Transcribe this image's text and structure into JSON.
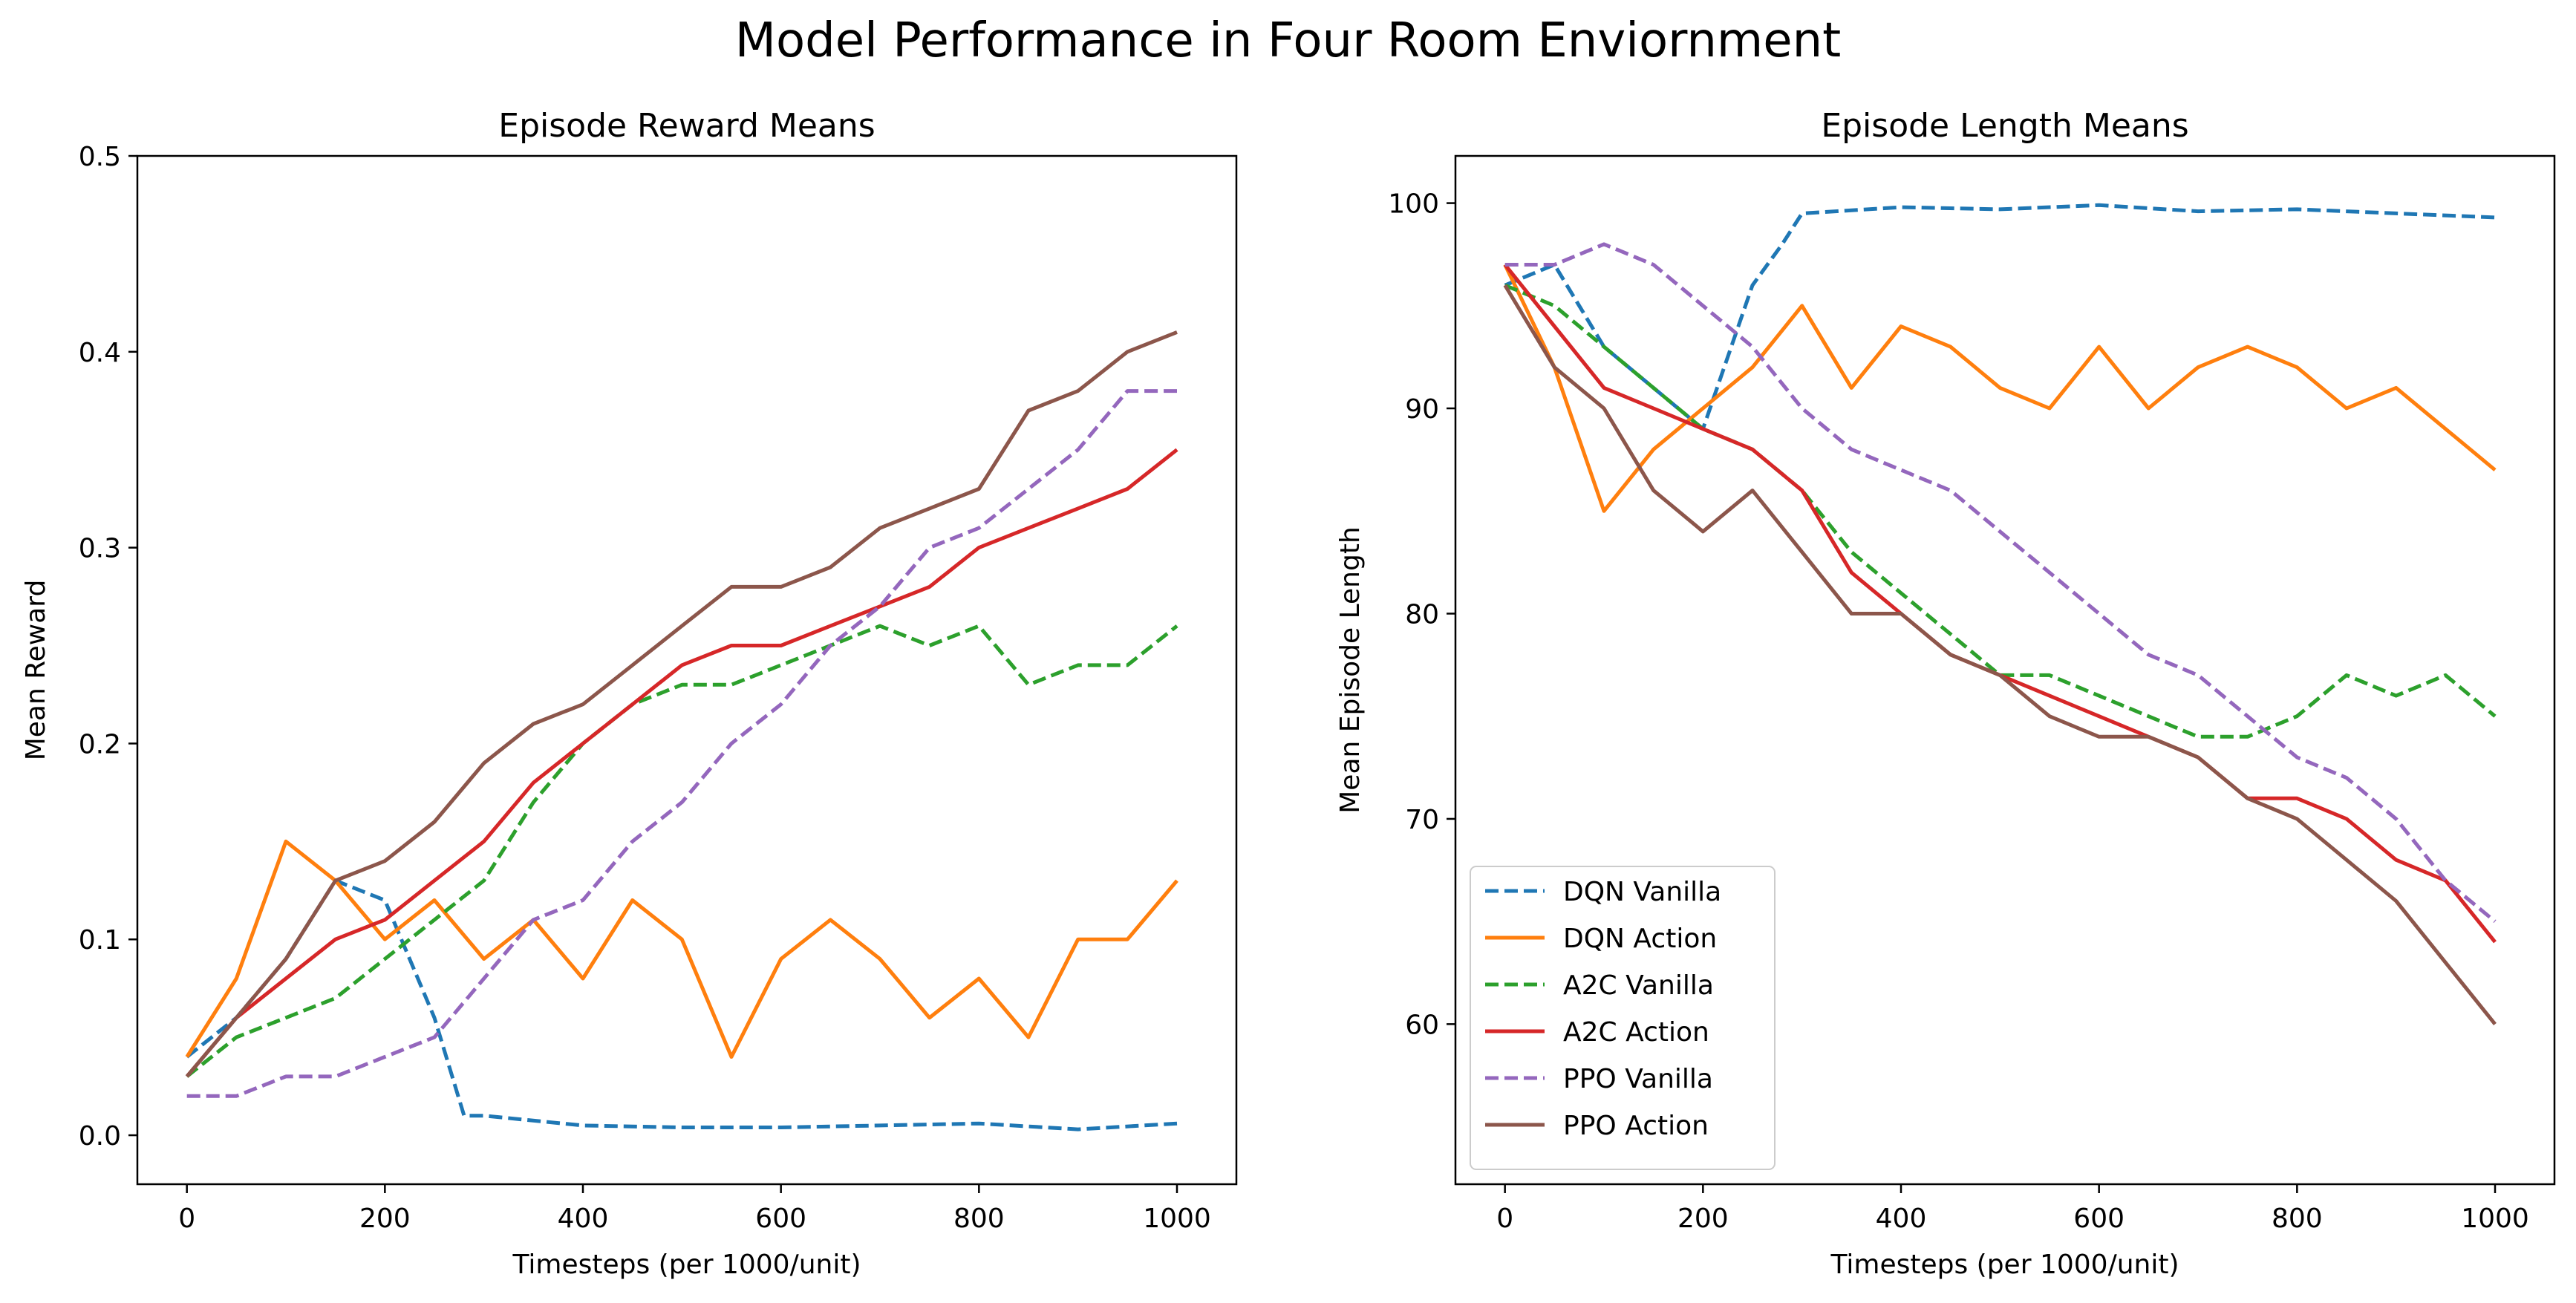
{
  "figure": {
    "title": "Model Performance in Four Room Enviornment"
  },
  "colors": {
    "DQN Vanilla": "#1f77b4",
    "DQN Action": "#ff7f0e",
    "A2C Vanilla": "#2ca02c",
    "A2C Action": "#d62728",
    "PPO Vanilla": "#9467bd",
    "PPO Action": "#8c564b"
  },
  "chart_data": [
    {
      "type": "line",
      "title": "Episode Reward Means",
      "xlabel": "Timesteps (per 1000/unit)",
      "ylabel": "Mean Reward",
      "xlim": [
        -50,
        1060
      ],
      "ylim": [
        -0.025,
        0.5
      ],
      "xticks": [
        0,
        200,
        400,
        600,
        800,
        1000
      ],
      "yticks": [
        0.0,
        0.1,
        0.2,
        0.3,
        0.4,
        0.5
      ],
      "ytick_labels": [
        "0.0",
        "0.1",
        "0.2",
        "0.3",
        "0.4",
        "0.5"
      ],
      "grid": false,
      "legend": false,
      "series": [
        {
          "name": "DQN Vanilla",
          "style": "dashed",
          "x": [
            0,
            50,
            100,
            150,
            200,
            250,
            280,
            300,
            400,
            500,
            600,
            700,
            800,
            900,
            1000
          ],
          "y": [
            0.04,
            0.06,
            0.09,
            0.13,
            0.12,
            0.06,
            0.01,
            0.01,
            0.005,
            0.004,
            0.004,
            0.005,
            0.006,
            0.003,
            0.006
          ]
        },
        {
          "name": "DQN Action",
          "style": "solid",
          "x": [
            0,
            50,
            100,
            150,
            200,
            250,
            300,
            350,
            400,
            450,
            500,
            550,
            600,
            650,
            700,
            750,
            800,
            850,
            900,
            950,
            1000
          ],
          "y": [
            0.04,
            0.08,
            0.15,
            0.13,
            0.1,
            0.12,
            0.09,
            0.11,
            0.08,
            0.12,
            0.1,
            0.04,
            0.09,
            0.11,
            0.09,
            0.06,
            0.08,
            0.05,
            0.1,
            0.1,
            0.13
          ]
        },
        {
          "name": "A2C Vanilla",
          "style": "dashed",
          "x": [
            0,
            50,
            100,
            150,
            200,
            250,
            300,
            350,
            400,
            450,
            500,
            550,
            600,
            650,
            700,
            750,
            800,
            850,
            900,
            950,
            1000
          ],
          "y": [
            0.03,
            0.05,
            0.06,
            0.07,
            0.09,
            0.11,
            0.13,
            0.17,
            0.2,
            0.22,
            0.23,
            0.23,
            0.24,
            0.25,
            0.26,
            0.25,
            0.26,
            0.23,
            0.24,
            0.24,
            0.26
          ]
        },
        {
          "name": "A2C Action",
          "style": "solid",
          "x": [
            0,
            50,
            100,
            150,
            200,
            250,
            300,
            350,
            400,
            450,
            500,
            550,
            600,
            650,
            700,
            750,
            800,
            850,
            900,
            950,
            1000
          ],
          "y": [
            0.03,
            0.06,
            0.08,
            0.1,
            0.11,
            0.13,
            0.15,
            0.18,
            0.2,
            0.22,
            0.24,
            0.25,
            0.25,
            0.26,
            0.27,
            0.28,
            0.3,
            0.31,
            0.32,
            0.33,
            0.35
          ]
        },
        {
          "name": "PPO Vanilla",
          "style": "dashed",
          "x": [
            0,
            50,
            100,
            150,
            200,
            250,
            300,
            350,
            400,
            450,
            500,
            550,
            600,
            650,
            700,
            750,
            800,
            850,
            900,
            950,
            1000
          ],
          "y": [
            0.02,
            0.02,
            0.03,
            0.03,
            0.04,
            0.05,
            0.08,
            0.11,
            0.12,
            0.15,
            0.17,
            0.2,
            0.22,
            0.25,
            0.27,
            0.3,
            0.31,
            0.33,
            0.35,
            0.38,
            0.38
          ]
        },
        {
          "name": "PPO Action",
          "style": "solid",
          "x": [
            0,
            50,
            100,
            150,
            200,
            250,
            300,
            350,
            400,
            450,
            500,
            550,
            600,
            650,
            700,
            750,
            800,
            850,
            900,
            950,
            1000
          ],
          "y": [
            0.03,
            0.06,
            0.09,
            0.13,
            0.14,
            0.16,
            0.19,
            0.21,
            0.22,
            0.24,
            0.26,
            0.28,
            0.28,
            0.29,
            0.31,
            0.32,
            0.33,
            0.37,
            0.38,
            0.4,
            0.41
          ]
        }
      ]
    },
    {
      "type": "line",
      "title": "Episode Length Means",
      "xlabel": "Timesteps (per 1000/unit)",
      "ylabel": "Mean Episode Length",
      "xlim": [
        -50,
        1060
      ],
      "ylim": [
        52.2,
        102.3
      ],
      "xticks": [
        0,
        200,
        400,
        600,
        800,
        1000
      ],
      "yticks": [
        60,
        70,
        80,
        90,
        100
      ],
      "ytick_labels": [
        "60",
        "70",
        "80",
        "90",
        "100"
      ],
      "grid": false,
      "legend": true,
      "legend_loc": "lower-left",
      "series": [
        {
          "name": "DQN Vanilla",
          "style": "dashed",
          "x": [
            0,
            50,
            100,
            150,
            200,
            250,
            280,
            300,
            400,
            500,
            600,
            700,
            800,
            900,
            1000
          ],
          "y": [
            96,
            97,
            93,
            91,
            89,
            96,
            98,
            99.5,
            99.8,
            99.7,
            99.9,
            99.6,
            99.7,
            99.5,
            99.3
          ]
        },
        {
          "name": "DQN Action",
          "style": "solid",
          "x": [
            0,
            50,
            100,
            150,
            200,
            250,
            300,
            350,
            400,
            450,
            500,
            550,
            600,
            650,
            700,
            750,
            800,
            850,
            900,
            950,
            1000
          ],
          "y": [
            97,
            92,
            85,
            88,
            90,
            92,
            95,
            91,
            94,
            93,
            91,
            90,
            93,
            90,
            92,
            93,
            92,
            90,
            91,
            89,
            87
          ]
        },
        {
          "name": "A2C Vanilla",
          "style": "dashed",
          "x": [
            0,
            50,
            100,
            150,
            200,
            250,
            300,
            350,
            400,
            450,
            500,
            550,
            600,
            650,
            700,
            750,
            800,
            850,
            900,
            950,
            1000
          ],
          "y": [
            96,
            95,
            93,
            91,
            89,
            88,
            86,
            83,
            81,
            79,
            77,
            77,
            76,
            75,
            74,
            74,
            75,
            77,
            76,
            77,
            75
          ]
        },
        {
          "name": "A2C Action",
          "style": "solid",
          "x": [
            0,
            50,
            100,
            150,
            200,
            250,
            300,
            350,
            400,
            450,
            500,
            550,
            600,
            650,
            700,
            750,
            800,
            850,
            900,
            950,
            1000
          ],
          "y": [
            97,
            94,
            91,
            90,
            89,
            88,
            86,
            82,
            80,
            78,
            77,
            76,
            75,
            74,
            73,
            71,
            71,
            70,
            68,
            67,
            64
          ]
        },
        {
          "name": "PPO Vanilla",
          "style": "dashed",
          "x": [
            0,
            50,
            100,
            150,
            200,
            250,
            300,
            350,
            400,
            450,
            500,
            550,
            600,
            650,
            700,
            750,
            800,
            850,
            900,
            950,
            1000
          ],
          "y": [
            97,
            97,
            98,
            97,
            95,
            93,
            90,
            88,
            87,
            86,
            84,
            82,
            80,
            78,
            77,
            75,
            73,
            72,
            70,
            67,
            65
          ]
        },
        {
          "name": "PPO Action",
          "style": "solid",
          "x": [
            0,
            50,
            100,
            150,
            200,
            250,
            300,
            350,
            400,
            450,
            500,
            550,
            600,
            650,
            700,
            750,
            800,
            850,
            900,
            950,
            1000
          ],
          "y": [
            96,
            92,
            90,
            86,
            84,
            86,
            83,
            80,
            80,
            78,
            77,
            75,
            74,
            74,
            73,
            71,
            70,
            68,
            66,
            63,
            60
          ]
        }
      ]
    }
  ]
}
